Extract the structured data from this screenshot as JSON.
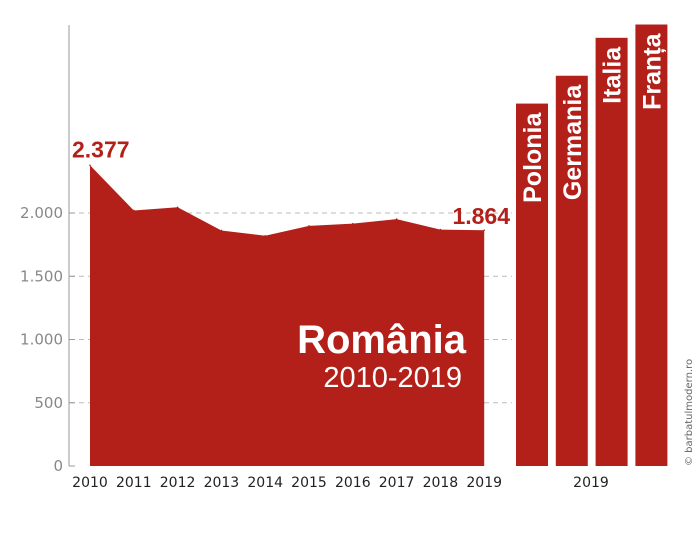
{
  "colors": {
    "fill": "#b3201a",
    "axis": "#999999",
    "grid": "#bbbbbb"
  },
  "credit": "© barbatulmodern.ro",
  "chart_data": [
    {
      "type": "area",
      "title": "România",
      "subtitle": "2010-2019",
      "x": [
        "2010",
        "2011",
        "2012",
        "2013",
        "2014",
        "2015",
        "2016",
        "2017",
        "2018",
        "2019"
      ],
      "values": [
        2377,
        2020,
        2045,
        1862,
        1820,
        1898,
        1916,
        1952,
        1869,
        1864
      ],
      "ylim": [
        0,
        2500
      ],
      "yticks": [
        0,
        500,
        1000,
        1500,
        2000
      ],
      "ytick_labels": [
        "0",
        "500",
        "1.000",
        "1.500",
        "2.000"
      ],
      "annotations": [
        {
          "year": "2010",
          "text": "2.377"
        },
        {
          "year": "2019",
          "text": "1.864"
        }
      ],
      "grid": true
    },
    {
      "type": "bar",
      "xlabel": "2019",
      "categories": [
        "Polonia",
        "Germania",
        "Italia",
        "Franța"
      ],
      "values": [
        2865,
        3085,
        3385,
        3490
      ]
    }
  ]
}
